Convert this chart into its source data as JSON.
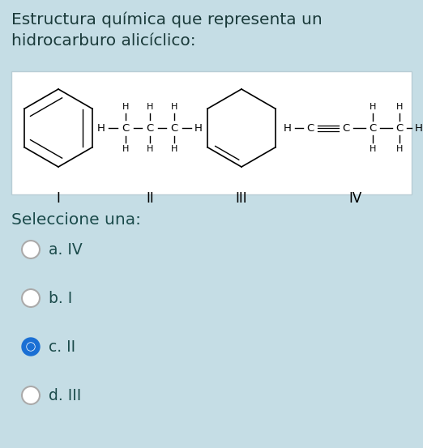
{
  "bg_color": "#c5dde5",
  "title_text": "Estructura química que representa un\nhidrocarburo alicíclico:",
  "title_fontsize": 14.5,
  "title_color": "#1a3a3a",
  "box_bg": "#ffffff",
  "label_I": "I",
  "label_II": "II",
  "label_III": "III",
  "label_IV": "IV",
  "question_text": "Seleccione una:",
  "options": [
    "a. IV",
    "b. I",
    "c. II",
    "d. III"
  ],
  "selected_option": 2,
  "radio_selected_color": "#1a6fd4",
  "option_fontsize": 13.5,
  "struct_fontsize": 8.0,
  "label_fontsize": 12,
  "text_color": "#1a4a4a"
}
